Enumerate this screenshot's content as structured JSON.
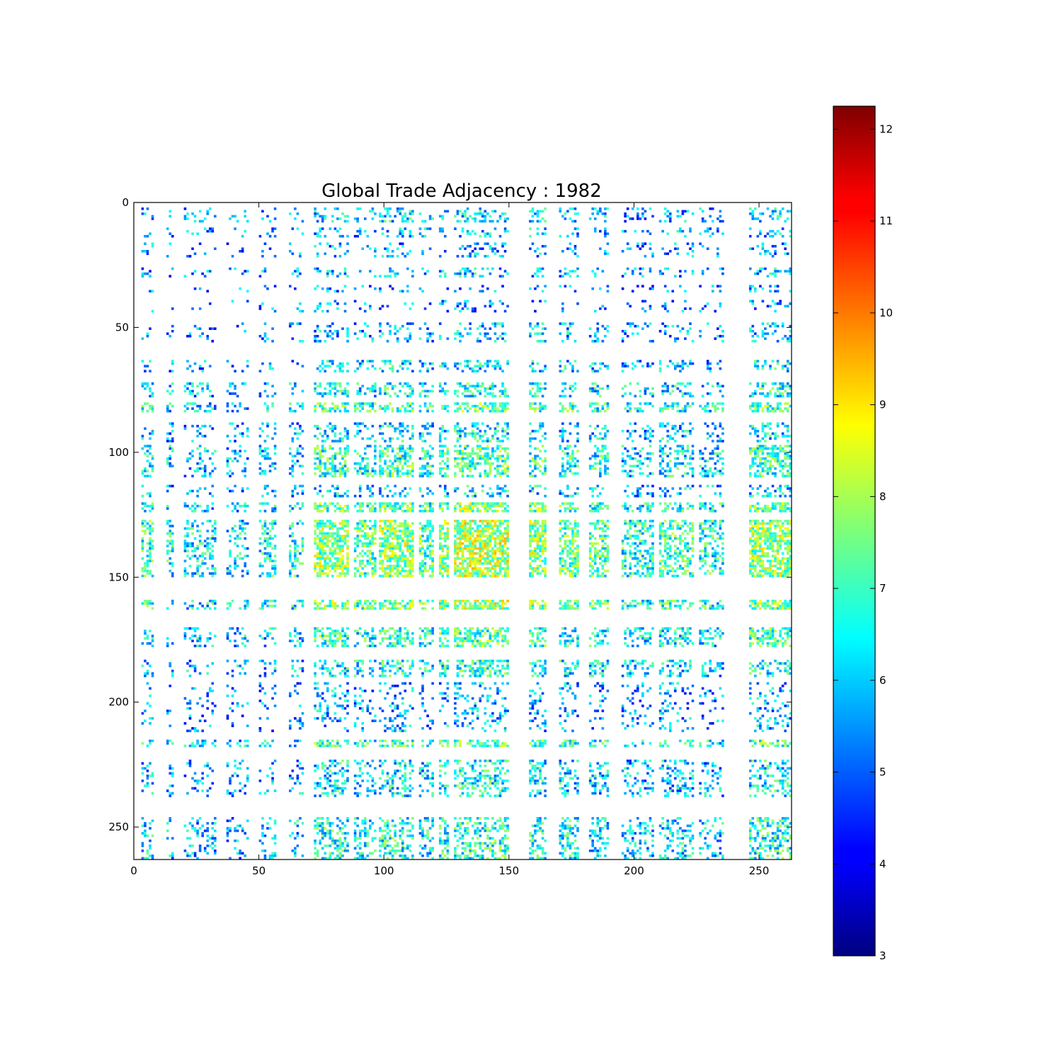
{
  "chart_data": {
    "type": "heatmap",
    "title": "Global Trade Adjacency : 1982",
    "xlabel": "",
    "ylabel": "",
    "matrix_size": 263,
    "x_ticks": [
      0,
      50,
      100,
      150,
      200,
      250
    ],
    "y_ticks": [
      0,
      50,
      100,
      150,
      200,
      250
    ],
    "xlim": [
      0,
      263
    ],
    "ylim": [
      263,
      0
    ],
    "colormap": "jet",
    "color_scale": {
      "min": 3,
      "max": 12.25,
      "ticks": [
        3,
        4,
        5,
        6,
        7,
        8,
        9,
        10,
        11,
        12
      ]
    },
    "row_bands": [
      {
        "start": 2,
        "end": 8,
        "density": 0.28
      },
      {
        "start": 10,
        "end": 14,
        "density": 0.22
      },
      {
        "start": 16,
        "end": 22,
        "density": 0.18
      },
      {
        "start": 26,
        "end": 30,
        "density": 0.24
      },
      {
        "start": 33,
        "end": 36,
        "density": 0.15
      },
      {
        "start": 39,
        "end": 44,
        "density": 0.14
      },
      {
        "start": 48,
        "end": 56,
        "density": 0.22
      },
      {
        "start": 63,
        "end": 68,
        "density": 0.3
      },
      {
        "start": 72,
        "end": 78,
        "density": 0.38
      },
      {
        "start": 80,
        "end": 84,
        "density": 0.5
      },
      {
        "start": 88,
        "end": 96,
        "density": 0.3
      },
      {
        "start": 97,
        "end": 110,
        "density": 0.45
      },
      {
        "start": 113,
        "end": 118,
        "density": 0.28
      },
      {
        "start": 120,
        "end": 124,
        "density": 0.55
      },
      {
        "start": 127,
        "end": 150,
        "density": 0.62
      },
      {
        "start": 159,
        "end": 163,
        "density": 0.6
      },
      {
        "start": 170,
        "end": 178,
        "density": 0.45
      },
      {
        "start": 183,
        "end": 190,
        "density": 0.38
      },
      {
        "start": 192,
        "end": 212,
        "density": 0.2
      },
      {
        "start": 215,
        "end": 218,
        "density": 0.5
      },
      {
        "start": 223,
        "end": 238,
        "density": 0.32
      },
      {
        "start": 246,
        "end": 263,
        "density": 0.4
      }
    ],
    "col_bands": [
      {
        "start": 3,
        "end": 8,
        "density": 0.6
      },
      {
        "start": 13,
        "end": 16,
        "density": 0.5
      },
      {
        "start": 20,
        "end": 33,
        "density": 0.45
      },
      {
        "start": 37,
        "end": 46,
        "density": 0.4
      },
      {
        "start": 50,
        "end": 57,
        "density": 0.5
      },
      {
        "start": 62,
        "end": 68,
        "density": 0.5
      },
      {
        "start": 72,
        "end": 86,
        "density": 0.85
      },
      {
        "start": 88,
        "end": 97,
        "density": 0.7
      },
      {
        "start": 98,
        "end": 112,
        "density": 0.85
      },
      {
        "start": 114,
        "end": 120,
        "density": 0.7
      },
      {
        "start": 122,
        "end": 126,
        "density": 0.85
      },
      {
        "start": 128,
        "end": 150,
        "density": 0.95
      },
      {
        "start": 158,
        "end": 165,
        "density": 0.85
      },
      {
        "start": 170,
        "end": 178,
        "density": 0.75
      },
      {
        "start": 182,
        "end": 190,
        "density": 0.7
      },
      {
        "start": 195,
        "end": 208,
        "density": 0.55
      },
      {
        "start": 210,
        "end": 224,
        "density": 0.65
      },
      {
        "start": 226,
        "end": 236,
        "density": 0.55
      },
      {
        "start": 246,
        "end": 263,
        "density": 0.85
      }
    ],
    "grid": false,
    "legend": "none"
  }
}
